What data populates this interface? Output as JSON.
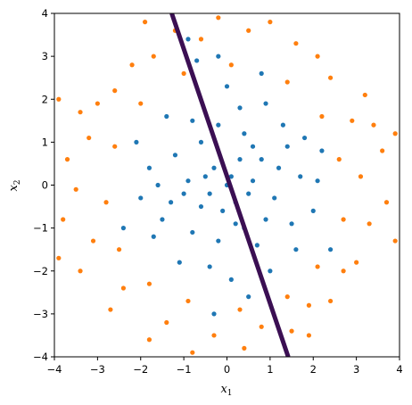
{
  "chart_data": {
    "type": "scatter",
    "title": "",
    "xlabel_base": "x",
    "xlabel_sub": "1",
    "ylabel_base": "x",
    "ylabel_sub": "2",
    "xlim": [
      -4,
      4
    ],
    "ylim": [
      -4,
      4
    ],
    "xticks": [
      -4,
      -3,
      -2,
      -1,
      0,
      1,
      2,
      3,
      4
    ],
    "yticks": [
      -4,
      -3,
      -2,
      -1,
      0,
      1,
      2,
      3,
      4
    ],
    "xtick_labels": [
      "−4",
      "−3",
      "−2",
      "−1",
      "0",
      "1",
      "2",
      "3",
      "4"
    ],
    "ytick_labels": [
      "−4",
      "−3",
      "−2",
      "−1",
      "0",
      "1",
      "2",
      "3",
      "4"
    ],
    "grid": false,
    "legend": "none",
    "series": [
      {
        "color": "#1f77b4",
        "points": [
          [
            0.1,
            0.2
          ],
          [
            -0.3,
            0.4
          ],
          [
            0.5,
            -0.2
          ],
          [
            -0.6,
            -0.5
          ],
          [
            0.8,
            0.6
          ],
          [
            -0.9,
            0.1
          ],
          [
            0.2,
            -0.9
          ],
          [
            1.1,
            -0.3
          ],
          [
            -1.2,
            0.7
          ],
          [
            0.4,
            1.2
          ],
          [
            -0.2,
            -1.3
          ],
          [
            1.4,
            0.9
          ],
          [
            -1.5,
            -0.8
          ],
          [
            0.7,
            -1.4
          ],
          [
            -0.8,
            1.5
          ],
          [
            1.7,
            0.2
          ],
          [
            -1.8,
            0.4
          ],
          [
            0.3,
            1.8
          ],
          [
            -0.4,
            -1.9
          ],
          [
            2.0,
            -0.6
          ],
          [
            -2.0,
            -0.3
          ],
          [
            0.9,
            1.9
          ],
          [
            -1.1,
            -1.8
          ],
          [
            1.6,
            -1.5
          ],
          [
            -1.4,
            1.6
          ],
          [
            2.2,
            0.8
          ],
          [
            -2.1,
            1.0
          ],
          [
            0.0,
            2.3
          ],
          [
            0.1,
            -2.2
          ],
          [
            -0.7,
            2.9
          ],
          [
            -0.9,
            3.4
          ],
          [
            0.8,
            2.6
          ],
          [
            -0.2,
            3.0
          ],
          [
            1.3,
            1.4
          ],
          [
            -1.7,
            -1.2
          ],
          [
            2.4,
            -1.5
          ],
          [
            0.5,
            -2.6
          ],
          [
            -0.3,
            -3.0
          ],
          [
            1.0,
            -2.0
          ],
          [
            -2.4,
            -1.0
          ],
          [
            0.0,
            0.0
          ],
          [
            0.3,
            0.6
          ],
          [
            -0.5,
            0.2
          ],
          [
            0.6,
            0.1
          ],
          [
            -0.1,
            -0.6
          ],
          [
            0.2,
            -0.4
          ],
          [
            -0.4,
            -0.2
          ],
          [
            0.9,
            -0.8
          ],
          [
            -1.0,
            -0.2
          ],
          [
            1.2,
            0.4
          ],
          [
            -0.6,
            1.0
          ],
          [
            0.4,
            -1.0
          ],
          [
            -1.3,
            -0.4
          ],
          [
            1.5,
            -0.9
          ],
          [
            -0.2,
            1.4
          ],
          [
            0.6,
            0.9
          ],
          [
            -0.8,
            -1.1
          ],
          [
            1.8,
            1.1
          ],
          [
            -1.6,
            0.0
          ],
          [
            2.1,
            0.1
          ]
        ]
      },
      {
        "color": "#ff7f0e",
        "points": [
          [
            3.1,
            0.2
          ],
          [
            2.9,
            1.5
          ],
          [
            2.4,
            2.5
          ],
          [
            1.6,
            3.3
          ],
          [
            0.5,
            3.6
          ],
          [
            -0.6,
            3.4
          ],
          [
            -1.7,
            3.0
          ],
          [
            -2.6,
            2.2
          ],
          [
            -3.2,
            1.1
          ],
          [
            -3.5,
            -0.1
          ],
          [
            -3.1,
            -1.3
          ],
          [
            -2.4,
            -2.4
          ],
          [
            -1.4,
            -3.2
          ],
          [
            -0.3,
            -3.5
          ],
          [
            0.8,
            -3.3
          ],
          [
            1.9,
            -2.8
          ],
          [
            2.7,
            -2.0
          ],
          [
            3.3,
            -0.9
          ],
          [
            3.6,
            0.8
          ],
          [
            3.2,
            2.1
          ],
          [
            2.1,
            3.0
          ],
          [
            1.0,
            3.8
          ],
          [
            -0.2,
            3.9
          ],
          [
            -1.2,
            3.6
          ],
          [
            -2.2,
            2.8
          ],
          [
            -3.0,
            1.9
          ],
          [
            -3.7,
            0.6
          ],
          [
            -3.8,
            -0.8
          ],
          [
            -3.4,
            -2.0
          ],
          [
            -2.7,
            -2.9
          ],
          [
            -1.8,
            -3.6
          ],
          [
            -0.8,
            -3.9
          ],
          [
            0.4,
            -3.8
          ],
          [
            1.5,
            -3.4
          ],
          [
            2.4,
            -2.7
          ],
          [
            3.0,
            -1.8
          ],
          [
            3.7,
            -0.4
          ],
          [
            2.6,
            0.6
          ],
          [
            2.7,
            -0.8
          ],
          [
            2.2,
            1.6
          ],
          [
            1.4,
            2.4
          ],
          [
            0.1,
            2.8
          ],
          [
            -1.0,
            2.6
          ],
          [
            -2.0,
            1.9
          ],
          [
            -2.6,
            0.9
          ],
          [
            -2.8,
            -0.4
          ],
          [
            -2.5,
            -1.5
          ],
          [
            -1.8,
            -2.3
          ],
          [
            -0.9,
            -2.7
          ],
          [
            0.3,
            -2.9
          ],
          [
            1.4,
            -2.6
          ],
          [
            2.1,
            -1.9
          ],
          [
            3.4,
            1.4
          ],
          [
            -3.4,
            1.7
          ],
          [
            -3.9,
            2.0
          ],
          [
            -3.9,
            -1.7
          ],
          [
            3.9,
            1.2
          ],
          [
            3.9,
            -1.3
          ],
          [
            -1.9,
            3.8
          ],
          [
            1.9,
            -3.5
          ]
        ]
      }
    ],
    "line": {
      "color": "#3b0f53",
      "points": [
        [
          -1.28,
          4.0
        ],
        [
          1.42,
          -4.0
        ]
      ]
    }
  }
}
